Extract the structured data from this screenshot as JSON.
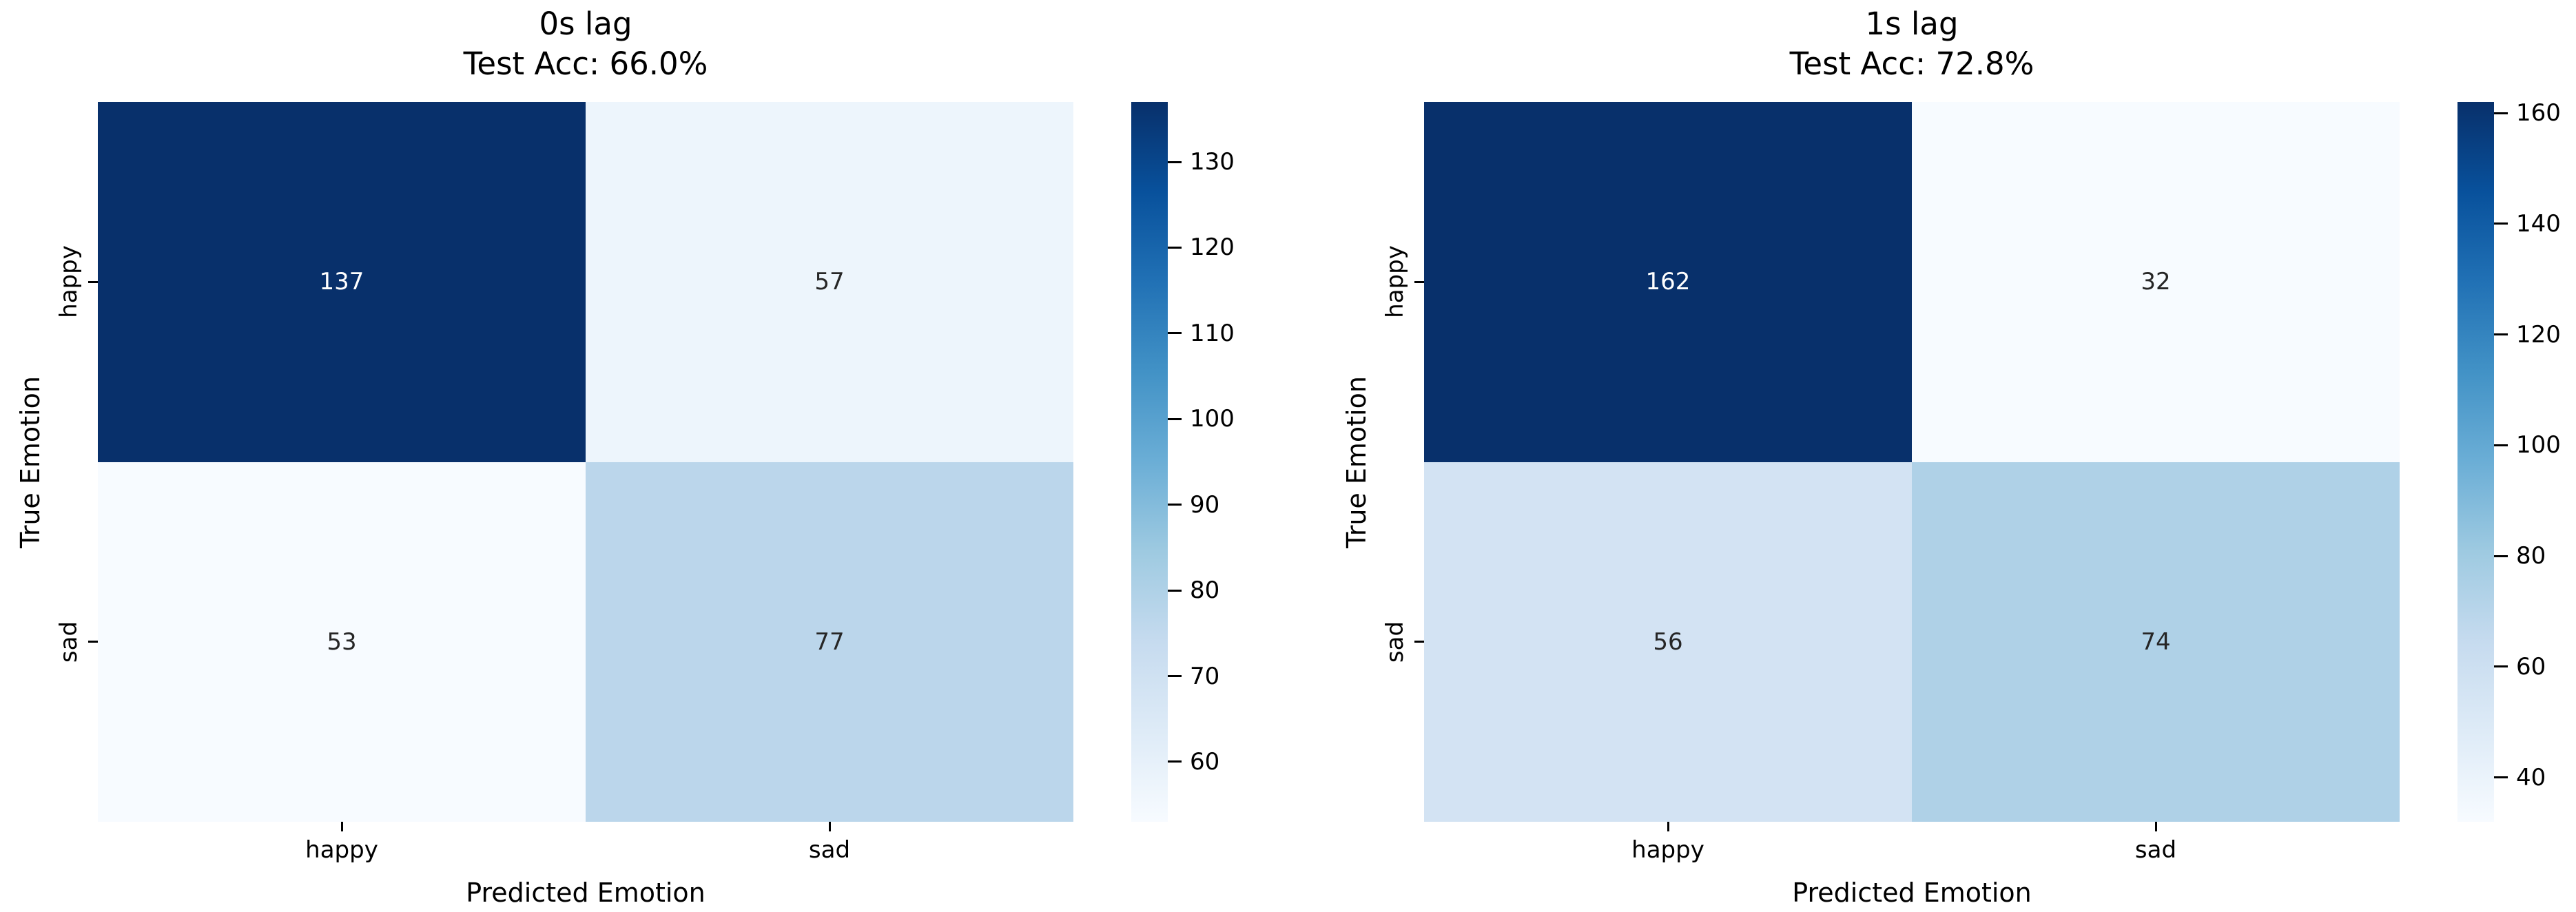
{
  "figure": {
    "background": "#ffffff",
    "text_color": "#000000"
  },
  "chart_data": [
    {
      "type": "heatmap",
      "title": "0s lag",
      "subtitle": "Test Acc: 66.0%",
      "xlabel": "Predicted Emotion",
      "ylabel": "True Emotion",
      "x_categories": [
        "happy",
        "sad"
      ],
      "y_categories": [
        "happy",
        "sad"
      ],
      "values": [
        [
          137,
          57
        ],
        [
          53,
          77
        ]
      ],
      "vmin": 53,
      "vmax": 137,
      "colorbar_ticks": [
        60,
        70,
        80,
        90,
        100,
        110,
        120,
        130
      ],
      "colormap": "Blues",
      "legend_position": "right-colorbar",
      "grid": false
    },
    {
      "type": "heatmap",
      "title": "1s lag",
      "subtitle": "Test Acc: 72.8%",
      "xlabel": "Predicted Emotion",
      "ylabel": "True Emotion",
      "x_categories": [
        "happy",
        "sad"
      ],
      "y_categories": [
        "happy",
        "sad"
      ],
      "values": [
        [
          162,
          32
        ],
        [
          56,
          74
        ]
      ],
      "vmin": 32,
      "vmax": 162,
      "colorbar_ticks": [
        40,
        60,
        80,
        100,
        120,
        140,
        160
      ],
      "colormap": "Blues",
      "legend_position": "right-colorbar",
      "grid": false
    }
  ],
  "colors": {
    "cmap_blues": [
      "#f7fbff",
      "#deebf7",
      "#c6dbef",
      "#9ecae1",
      "#6baed6",
      "#4292c6",
      "#2171b5",
      "#08519c",
      "#08306b"
    ],
    "annot_dark": "#262626",
    "annot_light": "#ffffff"
  }
}
